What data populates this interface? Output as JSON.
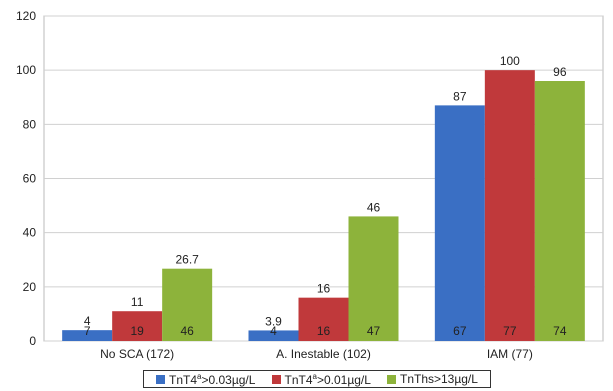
{
  "chart_data": {
    "type": "bar",
    "categories": [
      "No SCA (172)",
      "A. Inestable (102)",
      "IAM (77)"
    ],
    "ylim": [
      0,
      120
    ],
    "yticks": [
      0,
      20,
      40,
      60,
      80,
      100,
      120
    ],
    "grid": true,
    "legend_position": "bottom",
    "series": [
      {
        "name": "TnT4a>0.03µg/L",
        "legend_text": [
          "TnT4",
          "a",
          ">0.03µg/L"
        ],
        "color": "#3a6fc4",
        "values": [
          4,
          3.9,
          87
        ],
        "labels": [
          "4",
          "3.9",
          "87"
        ],
        "inner_labels": [
          "7",
          "4",
          "67"
        ]
      },
      {
        "name": "TnT4a>0.01µg/L",
        "legend_text": [
          "TnT4",
          "a",
          ">0.01µg/L"
        ],
        "color": "#c0393b",
        "values": [
          11,
          16,
          100
        ],
        "labels": [
          "11",
          "16",
          "100"
        ],
        "inner_labels": [
          "19",
          "16",
          "77"
        ]
      },
      {
        "name": "TnThs>13µg/L",
        "legend_text": [
          "TnThs>13µg/L",
          "",
          ""
        ],
        "color": "#8db33b",
        "values": [
          26.7,
          46,
          96
        ],
        "labels": [
          "26.7",
          "46",
          "96"
        ],
        "inner_labels": [
          "46",
          "47",
          "74"
        ]
      }
    ]
  }
}
